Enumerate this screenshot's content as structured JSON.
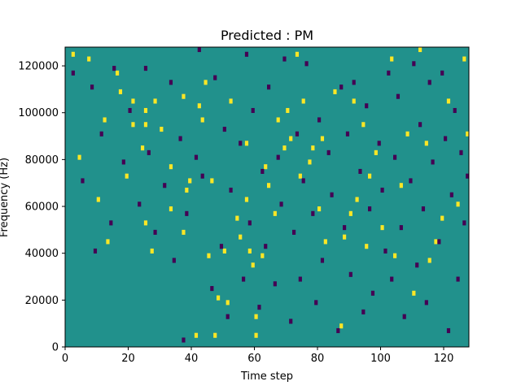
{
  "chart_data": {
    "type": "heatmap",
    "title": "Predicted : PM",
    "xlabel": "Time step",
    "ylabel": "Frequency (Hz)",
    "xlim": [
      0,
      128
    ],
    "ylim": [
      0,
      128000
    ],
    "x_ticks": [
      "0",
      "20",
      "40",
      "60",
      "80",
      "100",
      "120"
    ],
    "y_ticks": [
      "0",
      "20000",
      "40000",
      "60000",
      "80000",
      "100000",
      "120000"
    ],
    "grid": false,
    "legend": "none",
    "n_time_steps": 128,
    "n_frequency_bins": 64,
    "values_range": [
      -1,
      1
    ],
    "background_value": 0,
    "colors": {
      "background": "#21918c",
      "high": "#fde725",
      "low": "#440154"
    },
    "nonzero_cells": {
      "high": [
        [
          2,
          62
        ],
        [
          4,
          40
        ],
        [
          7,
          61
        ],
        [
          10,
          31
        ],
        [
          12,
          48
        ],
        [
          13,
          22
        ],
        [
          16,
          58
        ],
        [
          17,
          54
        ],
        [
          19,
          36
        ],
        [
          21,
          47
        ],
        [
          21,
          52
        ],
        [
          24,
          42
        ],
        [
          25,
          26
        ],
        [
          25,
          47
        ],
        [
          25,
          50
        ],
        [
          27,
          20
        ],
        [
          28,
          52
        ],
        [
          30,
          46
        ],
        [
          33,
          38
        ],
        [
          33,
          29
        ],
        [
          37,
          53
        ],
        [
          37,
          24
        ],
        [
          38,
          33
        ],
        [
          39,
          35
        ],
        [
          41,
          2
        ],
        [
          42,
          51
        ],
        [
          43,
          48
        ],
        [
          44,
          56
        ],
        [
          45,
          19
        ],
        [
          46,
          35
        ],
        [
          47,
          2
        ],
        [
          48,
          10
        ],
        [
          50,
          20
        ],
        [
          51,
          9
        ],
        [
          52,
          52
        ],
        [
          54,
          27
        ],
        [
          55,
          23
        ],
        [
          57,
          31
        ],
        [
          57,
          43
        ],
        [
          58,
          20
        ],
        [
          59,
          17
        ],
        [
          60,
          2
        ],
        [
          60,
          6
        ],
        [
          62,
          19
        ],
        [
          63,
          38
        ],
        [
          64,
          34
        ],
        [
          66,
          28
        ],
        [
          67,
          48
        ],
        [
          69,
          42
        ],
        [
          70,
          50
        ],
        [
          71,
          44
        ],
        [
          73,
          62
        ],
        [
          74,
          36
        ],
        [
          75,
          52
        ],
        [
          77,
          39
        ],
        [
          78,
          42
        ],
        [
          80,
          29
        ],
        [
          81,
          44
        ],
        [
          82,
          22
        ],
        [
          85,
          54
        ],
        [
          87,
          4
        ],
        [
          88,
          23
        ],
        [
          90,
          28
        ],
        [
          91,
          52
        ],
        [
          92,
          31
        ],
        [
          94,
          47
        ],
        [
          95,
          21
        ],
        [
          96,
          36
        ],
        [
          98,
          41
        ],
        [
          100,
          25
        ],
        [
          103,
          61
        ],
        [
          104,
          19
        ],
        [
          106,
          34
        ],
        [
          108,
          45
        ],
        [
          110,
          11
        ],
        [
          112,
          63
        ],
        [
          114,
          43
        ],
        [
          115,
          18
        ],
        [
          117,
          22
        ],
        [
          119,
          27
        ],
        [
          121,
          52
        ],
        [
          124,
          30
        ],
        [
          126,
          61
        ],
        [
          127,
          45
        ]
      ],
      "low": [
        [
          2,
          58
        ],
        [
          5,
          35
        ],
        [
          8,
          55
        ],
        [
          9,
          20
        ],
        [
          11,
          45
        ],
        [
          14,
          26
        ],
        [
          15,
          59
        ],
        [
          18,
          39
        ],
        [
          20,
          50
        ],
        [
          23,
          30
        ],
        [
          25,
          59
        ],
        [
          26,
          41
        ],
        [
          28,
          24
        ],
        [
          31,
          34
        ],
        [
          33,
          56
        ],
        [
          34,
          18
        ],
        [
          36,
          44
        ],
        [
          37,
          1
        ],
        [
          38,
          28
        ],
        [
          41,
          40
        ],
        [
          42,
          63
        ],
        [
          43,
          36
        ],
        [
          46,
          12
        ],
        [
          47,
          57
        ],
        [
          49,
          21
        ],
        [
          50,
          46
        ],
        [
          51,
          6
        ],
        [
          52,
          33
        ],
        [
          55,
          43
        ],
        [
          56,
          14
        ],
        [
          57,
          62
        ],
        [
          58,
          26
        ],
        [
          59,
          50
        ],
        [
          61,
          8
        ],
        [
          62,
          37
        ],
        [
          63,
          21
        ],
        [
          64,
          55
        ],
        [
          66,
          13
        ],
        [
          67,
          40
        ],
        [
          68,
          30
        ],
        [
          69,
          61
        ],
        [
          71,
          5
        ],
        [
          72,
          24
        ],
        [
          73,
          45
        ],
        [
          74,
          14
        ],
        [
          75,
          35
        ],
        [
          76,
          60
        ],
        [
          78,
          28
        ],
        [
          79,
          9
        ],
        [
          80,
          48
        ],
        [
          81,
          18
        ],
        [
          83,
          41
        ],
        [
          84,
          32
        ],
        [
          86,
          3
        ],
        [
          87,
          55
        ],
        [
          88,
          25
        ],
        [
          89,
          45
        ],
        [
          90,
          15
        ],
        [
          91,
          56
        ],
        [
          93,
          37
        ],
        [
          94,
          7
        ],
        [
          95,
          51
        ],
        [
          96,
          29
        ],
        [
          97,
          11
        ],
        [
          99,
          43
        ],
        [
          100,
          33
        ],
        [
          101,
          20
        ],
        [
          102,
          58
        ],
        [
          103,
          14
        ],
        [
          104,
          40
        ],
        [
          105,
          53
        ],
        [
          106,
          25
        ],
        [
          107,
          6
        ],
        [
          109,
          35
        ],
        [
          110,
          60
        ],
        [
          111,
          17
        ],
        [
          112,
          47
        ],
        [
          113,
          29
        ],
        [
          114,
          9
        ],
        [
          115,
          56
        ],
        [
          116,
          39
        ],
        [
          118,
          22
        ],
        [
          119,
          58
        ],
        [
          120,
          44
        ],
        [
          121,
          3
        ],
        [
          122,
          32
        ],
        [
          123,
          50
        ],
        [
          124,
          14
        ],
        [
          125,
          41
        ],
        [
          126,
          26
        ],
        [
          127,
          36
        ]
      ]
    }
  }
}
